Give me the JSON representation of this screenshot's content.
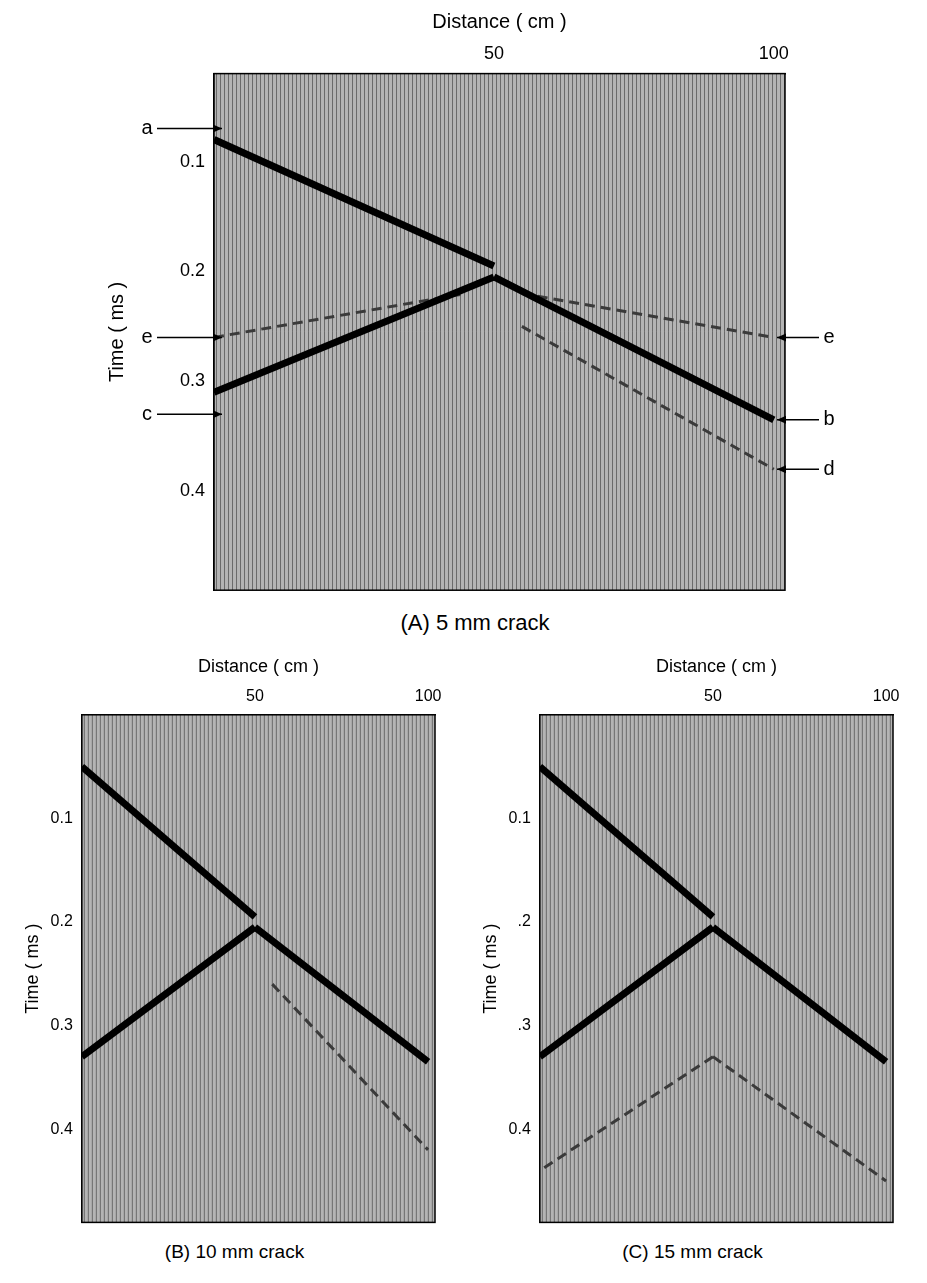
{
  "chart_data": [
    {
      "type": "line",
      "title": "(A) 5 mm crack",
      "x_label": "Distance ( cm )",
      "y_label": "Time ( ms )",
      "xlim": [
        0,
        102
      ],
      "xticks": [
        50,
        100
      ],
      "ylim": [
        0.02,
        0.49
      ],
      "yticks": [
        0.1,
        0.2,
        0.3,
        0.4
      ],
      "grid": false,
      "series": [
        {
          "color": "#000000",
          "line_style": "solid",
          "x": [
            0,
            50
          ],
          "values": [
            0.08,
            0.195
          ]
        },
        {
          "color": "#000000",
          "line_style": "solid",
          "x": [
            50,
            100
          ],
          "values": [
            0.205,
            0.335
          ]
        },
        {
          "color": "#000000",
          "line_style": "solid",
          "x": [
            50,
            0
          ],
          "values": [
            0.205,
            0.31
          ]
        },
        {
          "color": "#3a3a3a",
          "line_style": "dashed",
          "x": [
            0,
            45
          ],
          "values": [
            0.26,
            0.22
          ]
        },
        {
          "color": "#3a3a3a",
          "line_style": "dashed",
          "x": [
            55,
            100
          ],
          "values": [
            0.22,
            0.26
          ]
        },
        {
          "color": "#3a3a3a",
          "line_style": "dashed",
          "x": [
            55,
            100
          ],
          "values": [
            0.25,
            0.38
          ]
        }
      ],
      "annotations": [
        {
          "text": "a",
          "x": 0,
          "y": 0.07
        },
        {
          "text": "e",
          "x": 0,
          "y": 0.26
        },
        {
          "text": "c",
          "x": 0,
          "y": 0.33
        },
        {
          "text": "e",
          "x": 102,
          "y": 0.26
        },
        {
          "text": "b",
          "x": 102,
          "y": 0.335
        },
        {
          "text": "d",
          "x": 102,
          "y": 0.38
        }
      ]
    },
    {
      "type": "line",
      "title": "(B) 10 mm crack",
      "x_label": "Distance ( cm )",
      "y_label": "Time ( ms )",
      "xlim": [
        0,
        102
      ],
      "xticks": [
        50,
        100
      ],
      "ylim": [
        0,
        0.49
      ],
      "yticks": [
        0.1,
        0.2,
        0.3,
        0.4
      ],
      "grid": false,
      "series": [
        {
          "color": "#000000",
          "line_style": "solid",
          "x": [
            0,
            50
          ],
          "values": [
            0.05,
            0.195
          ]
        },
        {
          "color": "#000000",
          "line_style": "solid",
          "x": [
            50,
            100
          ],
          "values": [
            0.205,
            0.335
          ]
        },
        {
          "color": "#000000",
          "line_style": "solid",
          "x": [
            50,
            0
          ],
          "values": [
            0.205,
            0.33
          ]
        },
        {
          "color": "#3a3a3a",
          "line_style": "dashed",
          "x": [
            55,
            100
          ],
          "values": [
            0.26,
            0.42
          ]
        }
      ]
    },
    {
      "type": "line",
      "title": "(C) 15 mm crack",
      "x_label": "Distance ( cm )",
      "y_label": "Time ( ms )",
      "xlim": [
        0,
        102
      ],
      "xticks": [
        50,
        100
      ],
      "ylim": [
        0,
        0.49
      ],
      "yticks": [
        0.1,
        {
          "value": 0.2,
          "label": ".2"
        },
        {
          "value": 0.3,
          "label": ".3"
        },
        0.4
      ],
      "grid": false,
      "series": [
        {
          "color": "#000000",
          "line_style": "solid",
          "x": [
            0,
            50
          ],
          "values": [
            0.05,
            0.195
          ]
        },
        {
          "color": "#000000",
          "line_style": "solid",
          "x": [
            50,
            100
          ],
          "values": [
            0.205,
            0.335
          ]
        },
        {
          "color": "#000000",
          "line_style": "solid",
          "x": [
            50,
            0
          ],
          "values": [
            0.205,
            0.33
          ]
        },
        {
          "color": "#3a3a3a",
          "line_style": "dashed",
          "x": [
            50,
            100
          ],
          "values": [
            0.33,
            0.45
          ]
        },
        {
          "color": "#3a3a3a",
          "line_style": "dashed",
          "x": [
            50,
            0
          ],
          "values": [
            0.33,
            0.44
          ]
        }
      ]
    }
  ]
}
